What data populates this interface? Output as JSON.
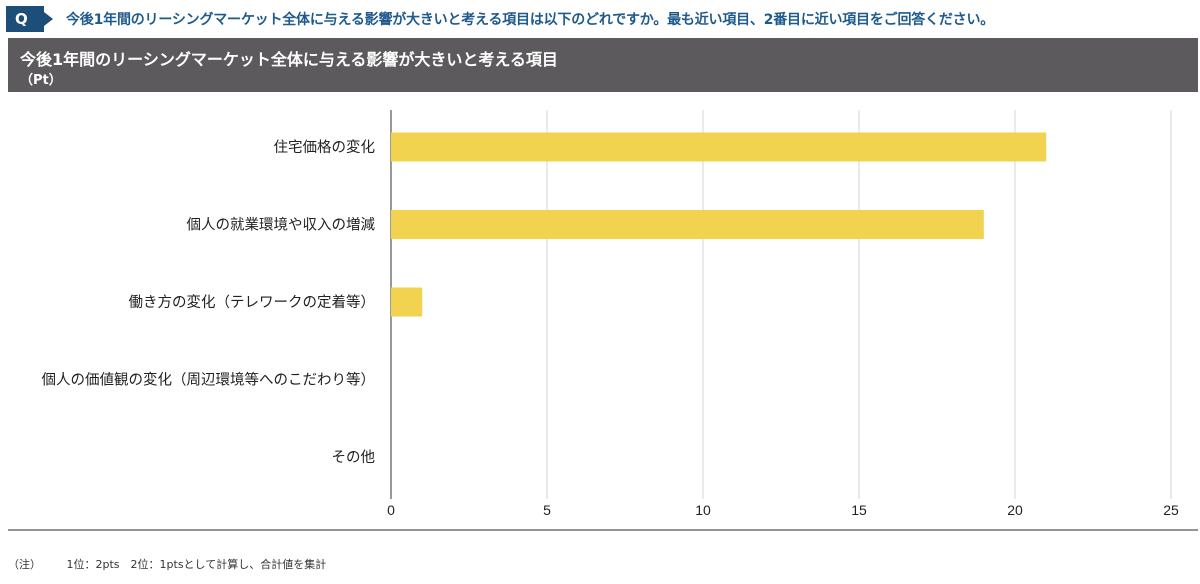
{
  "question": {
    "badge": "Q",
    "text": "今後1年間のリーシングマーケット全体に与える影響が大きいと考える項目は以下のどれですか。最も近い項目、2番目に近い項目をご回答ください。"
  },
  "header": {
    "title": "今後1年間のリーシングマーケット全体に与える影響が大きいと考える項目",
    "unit": "（Pt）"
  },
  "note": {
    "label": "（注）",
    "text": "1位：2pts　2位：1ptsとして計算し、合計値を集計"
  },
  "colors": {
    "bar": "#f2d350",
    "header": "#5c5a5c",
    "question": "#1d4e79"
  },
  "chart_data": {
    "type": "bar",
    "orientation": "horizontal",
    "categories": [
      "住宅価格の変化",
      "個人の就業環境や収入の増減",
      "働き方の変化（テレワークの定着等）",
      "個人の価値観の変化（周辺環境等へのこだわり等）",
      "その他"
    ],
    "values": [
      21,
      19,
      1,
      0,
      0
    ],
    "xlim": [
      0,
      25
    ],
    "xticks": [
      "0",
      "5",
      "10",
      "15",
      "20",
      "25"
    ],
    "grid": true
  }
}
